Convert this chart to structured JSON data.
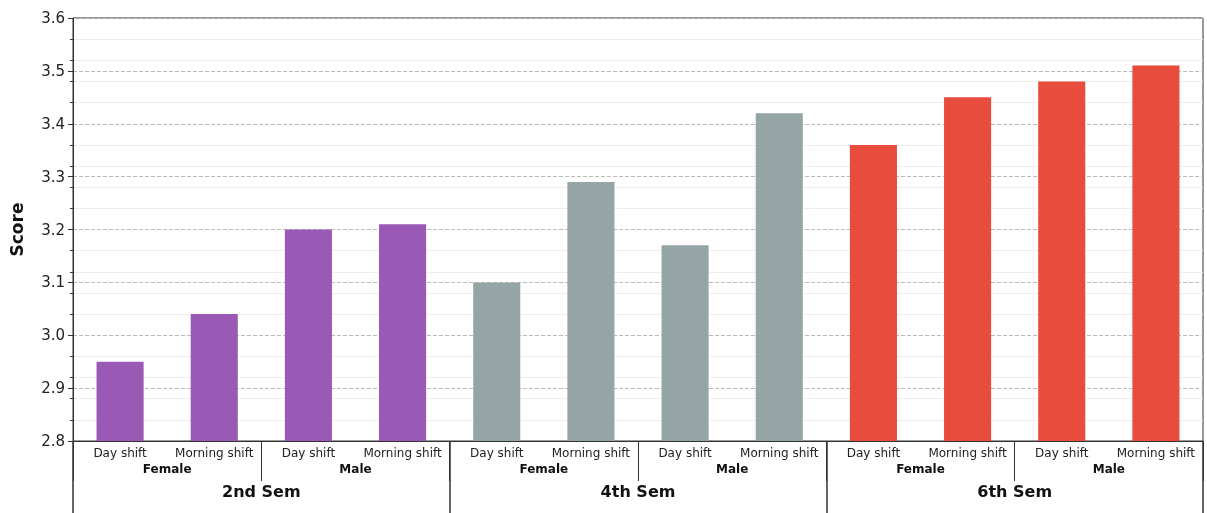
{
  "chart_data": {
    "type": "bar",
    "ylabel": "Score",
    "categories": [
      "Day shift",
      "Morning shift",
      "Day shift",
      "Morning shift",
      "Day shift",
      "Morning shift",
      "Day shift",
      "Morning shift",
      "Day shift",
      "Morning shift",
      "Day shift",
      "Morning shift"
    ],
    "series": [
      {
        "color": "#9b59b6",
        "values": [
          2.95,
          3.04,
          3.2,
          3.21,
          null,
          null,
          null,
          null,
          null,
          null,
          null,
          null
        ]
      },
      {
        "color": "#95a5a6",
        "values": [
          null,
          null,
          null,
          null,
          3.1,
          3.29,
          3.17,
          3.42,
          null,
          null,
          null,
          null
        ]
      },
      {
        "color": "#e74c3c",
        "values": [
          null,
          null,
          null,
          null,
          null,
          null,
          null,
          null,
          3.36,
          3.45,
          3.48,
          3.51
        ]
      }
    ],
    "annotations": [
      "Female",
      "Male",
      "Female",
      "Male",
      "Female",
      "Male",
      "2nd Sem",
      "4th Sem",
      "6th Sem"
    ],
    "ylim": [
      2.8,
      3.6
    ],
    "yticks": [
      2.8,
      2.9,
      {
        "value": 3,
        "label": "3.0"
      },
      3.1,
      3.2,
      3.3,
      3.4,
      3.5,
      3.6
    ],
    "grid": true
  }
}
